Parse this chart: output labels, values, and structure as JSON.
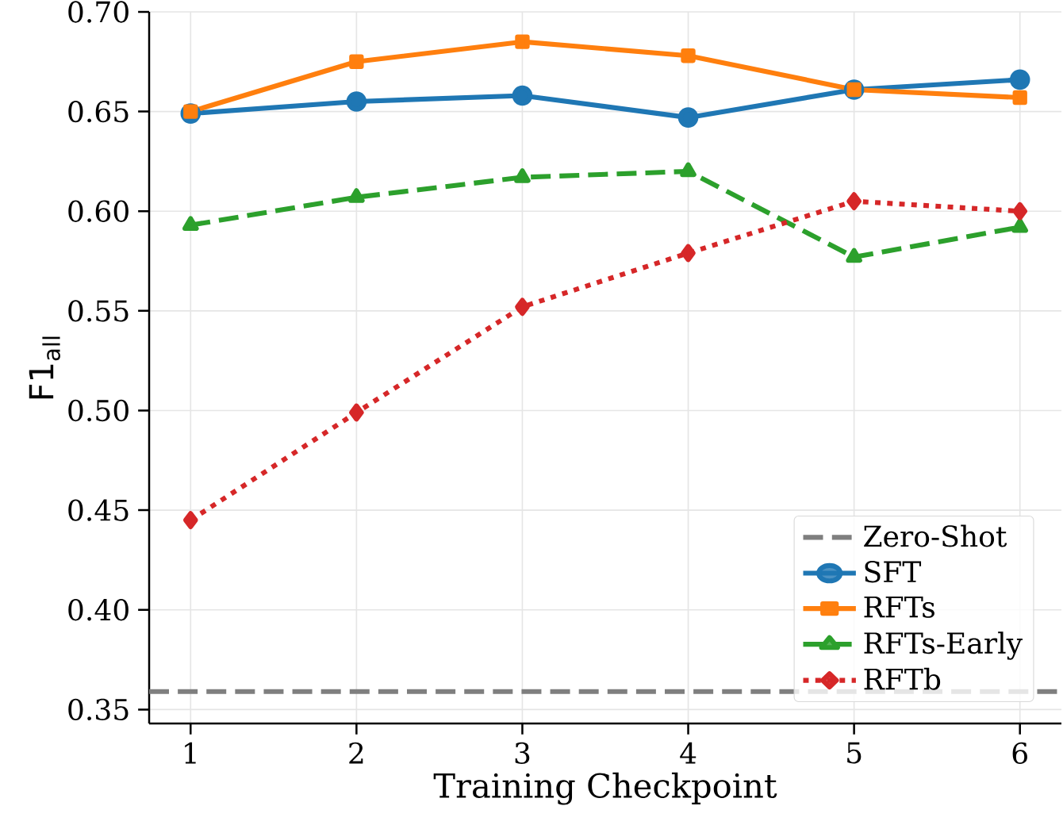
{
  "chart_data": {
    "type": "line",
    "xlabel": "Training Checkpoint",
    "ylabel": "F1$_{all}$",
    "x": [
      1,
      2,
      3,
      4,
      5,
      6
    ],
    "series": [
      {
        "name": "SFT",
        "color": "#1f77b4",
        "marker": "circle",
        "line_style": "solid",
        "values": [
          0.649,
          0.655,
          0.658,
          0.647,
          0.661,
          0.666
        ]
      },
      {
        "name": "RFTs",
        "color": "#ff7f0e",
        "marker": "square",
        "line_style": "solid",
        "values": [
          0.65,
          0.675,
          0.685,
          0.678,
          0.661,
          0.657
        ]
      },
      {
        "name": "RFTs-Early",
        "color": "#2ca02c",
        "marker": "triangle",
        "line_style": "dashed",
        "values": [
          0.593,
          0.607,
          0.617,
          0.62,
          0.577,
          0.592
        ]
      },
      {
        "name": "RFTb",
        "color": "#d62728",
        "marker": "diamond",
        "line_style": "dotted",
        "values": [
          0.445,
          0.499,
          0.552,
          0.579,
          0.605,
          0.6
        ]
      }
    ],
    "ref_lines": [
      {
        "axis": "y",
        "value": 0.359,
        "label": "Zero-Shot",
        "color": "#7f7f7f",
        "line_style": "dashed"
      }
    ],
    "xlim": [
      0.75,
      6.25
    ],
    "ylim": [
      0.343,
      0.7
    ],
    "xticks": [
      1,
      2,
      3,
      4,
      5,
      6
    ],
    "yticks": [
      {
        "value": 0.35,
        "label": "0.35"
      },
      {
        "value": 0.4,
        "label": "0.40"
      },
      {
        "value": 0.45,
        "label": "0.45"
      },
      {
        "value": 0.5,
        "label": "0.50"
      },
      {
        "value": 0.55,
        "label": "0.55"
      },
      {
        "value": 0.6,
        "label": "0.60"
      },
      {
        "value": 0.65,
        "label": "0.65"
      },
      {
        "value": 0.7,
        "label": "0.70"
      }
    ],
    "grid": true,
    "legend": "bottom right"
  }
}
